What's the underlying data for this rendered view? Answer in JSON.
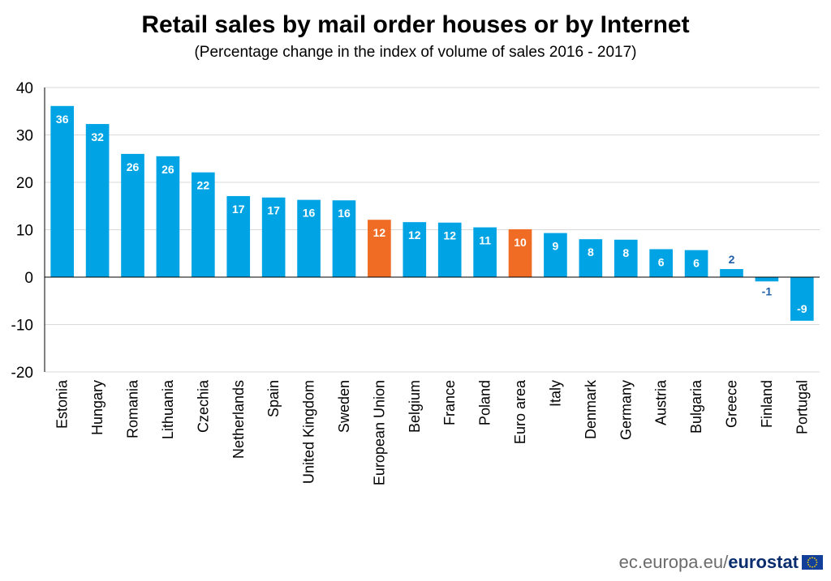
{
  "header": {
    "title": "Retail sales by mail order houses or by Internet",
    "subtitle": "(Percentage change in the index of volume of sales 2016 - 2017)"
  },
  "footer": {
    "domain": "ec.europa.eu/",
    "brand": "eurostat"
  },
  "colors": {
    "country_bar": "#00a4e4",
    "aggregate_bar": "#f06c24",
    "label_inside": "#ffffff",
    "label_outside": "#1f5ea8",
    "gridline": "#d9d9d9",
    "axis": "#000000"
  },
  "chart_data": {
    "type": "bar",
    "ylim": [
      -20,
      40
    ],
    "yticks": [
      -20,
      -10,
      0,
      10,
      20,
      30,
      40
    ],
    "grid": true,
    "categories": [
      "Estonia",
      "Hungary",
      "Romania",
      "Lithuania",
      "Czechia",
      "Netherlands",
      "Spain",
      "United Kingdom",
      "Sweden",
      "European Union",
      "Belgium",
      "France",
      "Poland",
      "Euro area",
      "Italy",
      "Denmark",
      "Germany",
      "Austria",
      "Bulgaria",
      "Greece",
      "Finland",
      "Portugal"
    ],
    "values": [
      36.1,
      32.3,
      26.0,
      25.5,
      22.1,
      17.1,
      16.8,
      16.3,
      16.2,
      12.1,
      11.6,
      11.5,
      10.5,
      10.1,
      9.3,
      8.0,
      7.9,
      5.9,
      5.7,
      1.7,
      -0.9,
      -9.2
    ],
    "labels": [
      "36",
      "32",
      "26",
      "26",
      "22",
      "17",
      "17",
      "16",
      "16",
      "12",
      "12",
      "12",
      "11",
      "10",
      "9",
      "8",
      "8",
      "6",
      "6",
      "2",
      "-1",
      "-9"
    ],
    "highlight": [
      "European Union",
      "Euro area"
    ]
  }
}
